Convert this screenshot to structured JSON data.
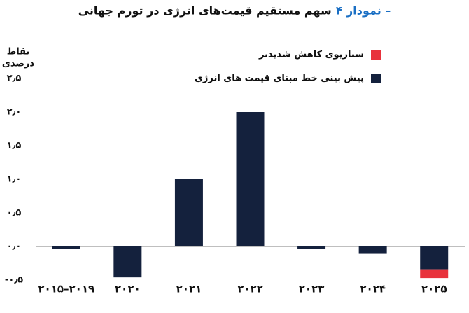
{
  "chart_data": {
    "type": "bar",
    "figure_number": "نمودار ۴ –",
    "title": "سهم مستقیم قیمت‌های انرژی در تورم جهانی",
    "ylabel": [
      "نقاط",
      "درصدی"
    ],
    "categories": [
      "۲۰۱۵–۲۰۱۹",
      "۲۰۲۰",
      "۲۰۲۱",
      "۲۰۲۲",
      "۲۰۲۳",
      "۲۰۲۴",
      "۲۰۲۵"
    ],
    "series": [
      {
        "name": "سناریوی کاهش شدیدتر",
        "color": "#e8323c",
        "values": [
          null,
          null,
          null,
          null,
          null,
          null,
          -0.13
        ]
      },
      {
        "name": "پیش بینی خط مبنای قیمت های انرژی",
        "color": "#14213d",
        "values": [
          -0.04,
          -0.46,
          1.0,
          2.0,
          -0.04,
          -0.11,
          -0.34
        ]
      }
    ],
    "stacked": true,
    "ylim": [
      -0.5,
      2.5
    ],
    "yticks": [
      {
        "value": 2.5,
        "label": "۲٫۵"
      },
      {
        "value": 2.0,
        "label": "۲٫۰"
      },
      {
        "value": 1.5,
        "label": "۱٫۵"
      },
      {
        "value": 1.0,
        "label": "۱٫۰"
      },
      {
        "value": 0.5,
        "label": "۰٫۵"
      },
      {
        "value": 0.0,
        "label": "۰٫۰"
      },
      {
        "value": -0.5,
        "label": "-۰٫۵"
      }
    ],
    "grid": false,
    "legend": "top-right"
  }
}
